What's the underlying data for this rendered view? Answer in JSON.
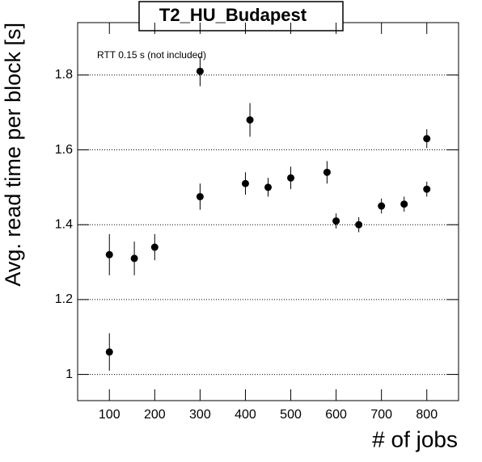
{
  "chart_data": {
    "type": "scatter",
    "title": "T2_HU_Budapest",
    "annotation": "RTT 0.15 s (not included)",
    "xlabel": "# of jobs",
    "ylabel": "Avg. read time per block [s]",
    "x": [
      100,
      100,
      155,
      200,
      300,
      300,
      400,
      410,
      450,
      500,
      580,
      600,
      650,
      700,
      750,
      800,
      800
    ],
    "values": [
      1.06,
      1.32,
      1.31,
      1.34,
      1.81,
      1.475,
      1.51,
      1.68,
      1.5,
      1.525,
      1.54,
      1.41,
      1.4,
      1.45,
      1.455,
      1.63,
      1.495
    ],
    "errors": [
      0.05,
      0.055,
      0.045,
      0.035,
      0.04,
      0.035,
      0.03,
      0.045,
      0.025,
      0.03,
      0.03,
      0.02,
      0.02,
      0.02,
      0.02,
      0.025,
      0.02
    ],
    "color": "#000000",
    "xlim": [
      30,
      870
    ],
    "xticks": [
      100,
      200,
      300,
      400,
      500,
      600,
      700,
      800
    ],
    "ylim": [
      0.93,
      1.94
    ],
    "yticks": [
      1,
      1.2,
      1.4,
      1.6,
      1.8
    ],
    "grid": true
  }
}
